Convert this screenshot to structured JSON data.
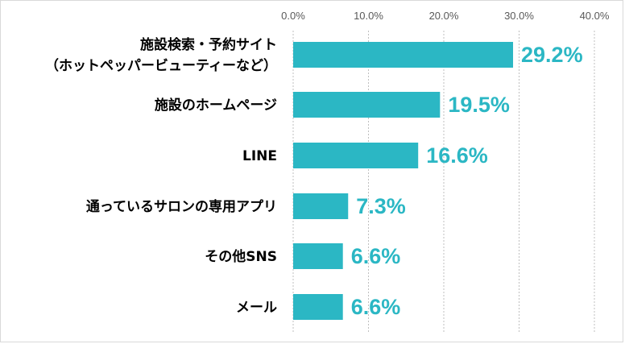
{
  "chart_data": {
    "type": "bar",
    "orientation": "horizontal",
    "title": "",
    "xlabel": "",
    "ylabel": "",
    "categories": [
      [
        "施設検索・予約サイト",
        "（ホットペッパービューティーなど）"
      ],
      [
        "施設のホームページ"
      ],
      [
        "LINE"
      ],
      [
        "通っているサロンの専用アプリ"
      ],
      [
        "その他SNS"
      ],
      [
        "メール"
      ]
    ],
    "values": [
      29.2,
      19.5,
      16.6,
      7.3,
      6.6,
      6.6
    ],
    "value_labels": [
      "29.2%",
      "19.5%",
      "16.6%",
      "7.3%",
      "6.6%",
      "6.6%"
    ],
    "xlim": [
      0,
      40
    ],
    "ticks": [
      0,
      10,
      20,
      30,
      40
    ],
    "tick_labels": [
      "0.0%",
      "10.0%",
      "20.0%",
      "30.0%",
      "40.0%"
    ],
    "axis_position": "top",
    "grid": true,
    "legend": "none",
    "colors": {
      "bar": "#2BB7C4",
      "data_label": "#2BB7C4",
      "grid": "#bfbfbf",
      "tick_text": "#595959",
      "category_text": "#000000"
    }
  }
}
